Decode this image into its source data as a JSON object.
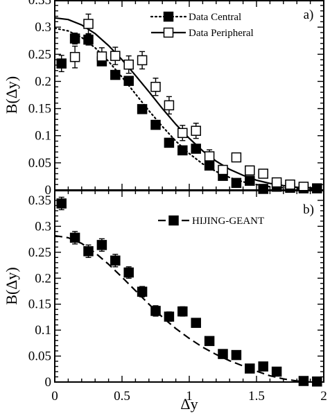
{
  "chart_data": [
    {
      "panel_label": "a)",
      "type": "scatter",
      "ylabel": "B(Δy)",
      "xlim": [
        0,
        2
      ],
      "ylim": [
        0,
        0.35
      ],
      "x_ticks": [
        "0",
        "0.5",
        "1",
        "1.5",
        "2"
      ],
      "y_ticks": [
        "0",
        "0.05",
        "0.1",
        "0.15",
        "0.2",
        "0.25",
        "0.3",
        "0.35"
      ],
      "legend_position": "top-center",
      "series": [
        {
          "name": "Data Central",
          "marker": "filled-square",
          "x": [
            0.05,
            0.15,
            0.25,
            0.35,
            0.45,
            0.55,
            0.65,
            0.75,
            0.85,
            0.95,
            1.05,
            1.15,
            1.25,
            1.35,
            1.45,
            1.55,
            1.65,
            1.75,
            1.85,
            1.95
          ],
          "y": [
            0.233,
            0.279,
            0.277,
            0.237,
            0.212,
            0.201,
            0.149,
            0.12,
            0.087,
            0.073,
            0.076,
            0.045,
            0.026,
            0.013,
            0.017,
            0.002,
            0.006,
            0.004,
            0.003,
            0.003
          ],
          "err": [
            0.015,
            0.01,
            0.01,
            0.008,
            0.007,
            0.007,
            0.006,
            0.006,
            0.005,
            0.005,
            0.005,
            0.004,
            0.004,
            0.003,
            0.003,
            0.002,
            0.002,
            0.002,
            0.002,
            0.002
          ]
        },
        {
          "name": "Data Peripheral",
          "marker": "open-square",
          "x": [
            0.15,
            0.25,
            0.35,
            0.45,
            0.55,
            0.65,
            0.75,
            0.85,
            0.95,
            1.05,
            1.15,
            1.25,
            1.35,
            1.45,
            1.55,
            1.65,
            1.75,
            1.85
          ],
          "y": [
            0.245,
            0.306,
            0.246,
            0.247,
            0.231,
            0.239,
            0.19,
            0.156,
            0.105,
            0.109,
            0.062,
            0.037,
            0.06,
            0.036,
            0.03,
            0.014,
            0.01,
            0.006
          ],
          "err": [
            0.02,
            0.018,
            0.016,
            0.016,
            0.016,
            0.016,
            0.016,
            0.016,
            0.014,
            0.014,
            0.012,
            0.008,
            0.008,
            0.007,
            0.006,
            0.005,
            0.004,
            0.003
          ]
        },
        {
          "name": "Data Central",
          "kind": "fit",
          "style": "dotted",
          "x": [
            0.0,
            0.1,
            0.2,
            0.3,
            0.4,
            0.5,
            0.6,
            0.7,
            0.8,
            0.9,
            1.0,
            1.1,
            1.2,
            1.3,
            1.4,
            1.5,
            1.6,
            1.7,
            1.8,
            1.9,
            1.95
          ],
          "y": [
            0.298,
            0.293,
            0.281,
            0.262,
            0.237,
            0.208,
            0.177,
            0.146,
            0.117,
            0.09,
            0.067,
            0.048,
            0.034,
            0.023,
            0.015,
            0.01,
            0.006,
            0.004,
            0.003,
            0.002,
            0.002
          ]
        },
        {
          "name": "Data Peripheral",
          "kind": "fit",
          "style": "solid",
          "x": [
            0.0,
            0.1,
            0.2,
            0.3,
            0.4,
            0.5,
            0.6,
            0.7,
            0.8,
            0.9,
            1.0,
            1.1,
            1.2,
            1.3,
            1.4,
            1.5,
            1.6,
            1.7,
            1.8,
            1.9,
            1.95
          ],
          "y": [
            0.317,
            0.314,
            0.304,
            0.288,
            0.266,
            0.24,
            0.211,
            0.181,
            0.15,
            0.121,
            0.095,
            0.072,
            0.053,
            0.038,
            0.027,
            0.018,
            0.012,
            0.008,
            0.005,
            0.004,
            0.003
          ]
        }
      ]
    },
    {
      "panel_label": "b)",
      "type": "scatter",
      "ylabel": "B(Δy)",
      "xlabel": "Δy",
      "xlim": [
        0,
        2
      ],
      "ylim": [
        0,
        0.37
      ],
      "x_ticks": [
        "0",
        "0.5",
        "1",
        "1.5",
        "2"
      ],
      "y_ticks": [
        "0",
        "0.05",
        "0.1",
        "0.15",
        "0.2",
        "0.25",
        "0.3",
        "0.35"
      ],
      "legend_position": "top-right",
      "series": [
        {
          "name": "HIJING-GEANT",
          "marker": "filled-square",
          "x": [
            0.05,
            0.15,
            0.25,
            0.35,
            0.45,
            0.55,
            0.65,
            0.75,
            0.85,
            0.95,
            1.05,
            1.15,
            1.25,
            1.35,
            1.45,
            1.55,
            1.65,
            1.85,
            1.95
          ],
          "y": [
            0.344,
            0.278,
            0.252,
            0.264,
            0.234,
            0.211,
            0.174,
            0.137,
            0.126,
            0.136,
            0.114,
            0.079,
            0.054,
            0.052,
            0.026,
            0.03,
            0.02,
            0.002,
            0.001
          ],
          "err": [
            0.012,
            0.012,
            0.012,
            0.012,
            0.012,
            0.011,
            0.01,
            0.01,
            0.009,
            0.009,
            0.008,
            0.007,
            0.006,
            0.006,
            0.005,
            0.005,
            0.004,
            0.003,
            0.003
          ]
        },
        {
          "name": "HIJING-GEANT",
          "kind": "fit",
          "style": "dashed",
          "x": [
            0.0,
            0.1,
            0.2,
            0.3,
            0.4,
            0.5,
            0.6,
            0.7,
            0.8,
            0.9,
            1.0,
            1.1,
            1.2,
            1.3,
            1.4,
            1.5,
            1.6,
            1.7,
            1.8,
            1.9,
            1.95
          ],
          "y": [
            0.282,
            0.278,
            0.267,
            0.249,
            0.227,
            0.202,
            0.176,
            0.15,
            0.125,
            0.103,
            0.084,
            0.067,
            0.053,
            0.041,
            0.031,
            0.021,
            0.012,
            0.006,
            0.002,
            0.0,
            0.0
          ]
        }
      ]
    }
  ]
}
